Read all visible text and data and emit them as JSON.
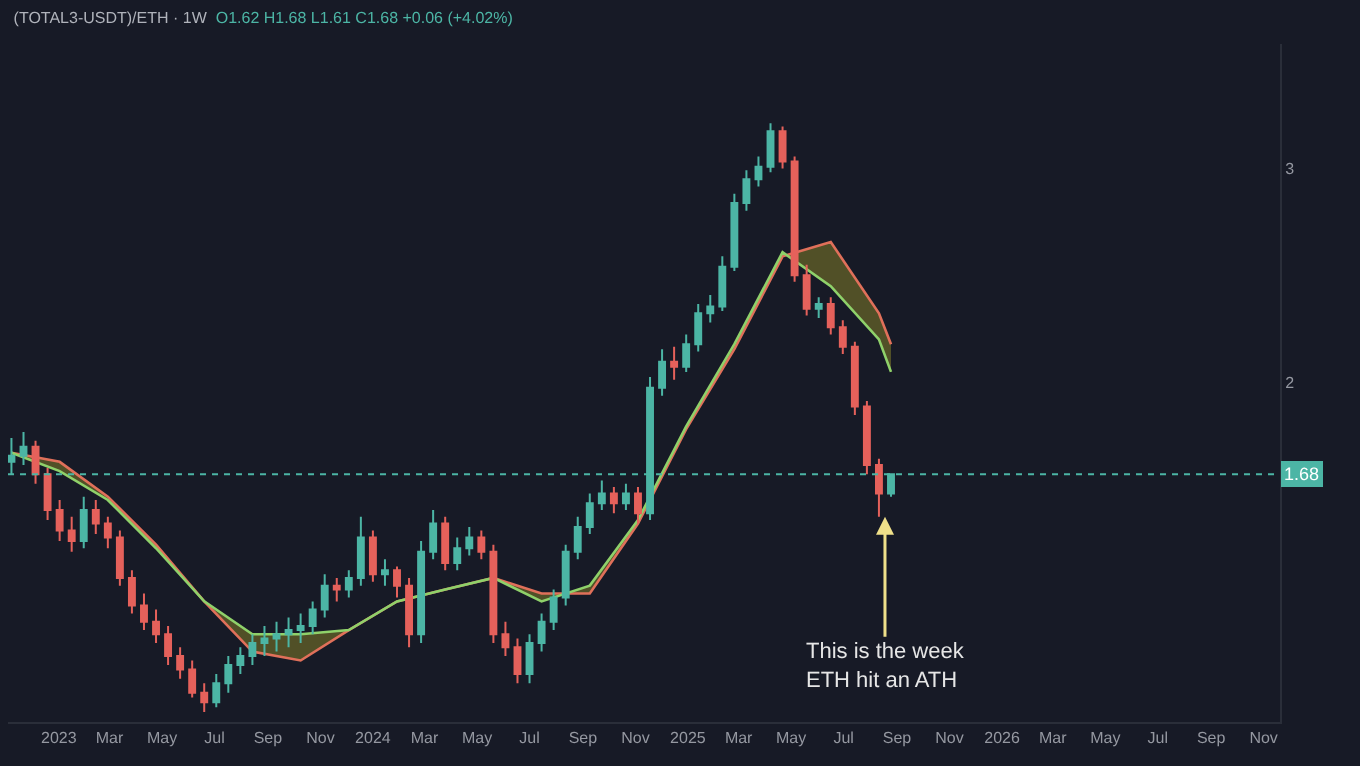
{
  "chart_data": {
    "type": "candlestick",
    "title": "(TOTAL3-USDT)/ETH · 1W",
    "subtitle": "O1.62 H1.68 L1.61 C1.68 +0.06 (+4.02%)",
    "x": [
      "2022-11-07",
      "2022-11-21",
      "2022-12-05",
      "2022-12-19",
      "2023-01-02",
      "2023-01-16",
      "2023-01-30",
      "2023-02-13",
      "2023-02-27",
      "2023-03-13",
      "2023-03-27",
      "2023-04-10",
      "2023-04-24",
      "2023-05-08",
      "2023-05-22",
      "2023-06-05",
      "2023-06-19",
      "2023-07-03",
      "2023-07-17",
      "2023-07-31",
      "2023-08-14",
      "2023-08-28",
      "2023-09-11",
      "2023-09-25",
      "2023-10-09",
      "2023-10-23",
      "2023-11-06",
      "2023-11-20",
      "2023-12-04",
      "2023-12-18",
      "2024-01-01",
      "2024-01-15",
      "2024-01-29",
      "2024-02-12",
      "2024-02-26",
      "2024-03-11",
      "2024-03-25",
      "2024-04-08",
      "2024-04-22",
      "2024-05-06",
      "2024-05-20",
      "2024-06-03",
      "2024-06-17",
      "2024-07-01",
      "2024-07-15",
      "2024-07-29",
      "2024-08-12",
      "2024-08-26",
      "2024-09-09",
      "2024-09-23",
      "2024-10-07",
      "2024-10-21",
      "2024-11-04",
      "2024-11-18",
      "2024-12-02",
      "2024-12-16",
      "2024-12-30",
      "2025-01-13",
      "2025-01-27",
      "2025-02-10",
      "2025-02-24",
      "2025-03-10",
      "2025-03-24",
      "2025-04-07",
      "2025-04-21",
      "2025-05-05",
      "2025-05-19",
      "2025-06-02",
      "2025-06-16",
      "2025-06-30",
      "2025-07-14",
      "2025-07-28",
      "2025-08-11",
      "2025-08-25"
    ],
    "ohlc": [
      [
        1.72,
        1.8,
        1.68,
        1.74
      ],
      [
        1.74,
        1.82,
        1.71,
        1.77
      ],
      [
        1.77,
        1.79,
        1.65,
        1.68
      ],
      [
        1.68,
        1.7,
        1.54,
        1.57
      ],
      [
        1.57,
        1.6,
        1.48,
        1.51
      ],
      [
        1.51,
        1.55,
        1.45,
        1.48
      ],
      [
        1.48,
        1.61,
        1.46,
        1.57
      ],
      [
        1.57,
        1.6,
        1.5,
        1.53
      ],
      [
        1.53,
        1.55,
        1.46,
        1.49
      ],
      [
        1.49,
        1.51,
        1.36,
        1.38
      ],
      [
        1.38,
        1.4,
        1.29,
        1.31
      ],
      [
        1.31,
        1.34,
        1.25,
        1.27
      ],
      [
        1.27,
        1.3,
        1.22,
        1.24
      ],
      [
        1.24,
        1.26,
        1.17,
        1.19
      ],
      [
        1.19,
        1.21,
        1.14,
        1.16
      ],
      [
        1.16,
        1.18,
        1.1,
        1.11
      ],
      [
        1.11,
        1.13,
        1.07,
        1.09
      ],
      [
        1.09,
        1.15,
        1.08,
        1.13
      ],
      [
        1.13,
        1.19,
        1.11,
        1.17
      ],
      [
        1.17,
        1.21,
        1.15,
        1.19
      ],
      [
        1.19,
        1.24,
        1.17,
        1.22
      ],
      [
        1.22,
        1.26,
        1.19,
        1.23
      ],
      [
        1.23,
        1.27,
        1.2,
        1.24
      ],
      [
        1.24,
        1.28,
        1.21,
        1.25
      ],
      [
        1.25,
        1.29,
        1.22,
        1.26
      ],
      [
        1.26,
        1.32,
        1.24,
        1.3
      ],
      [
        1.3,
        1.39,
        1.28,
        1.36
      ],
      [
        1.36,
        1.38,
        1.32,
        1.35
      ],
      [
        1.35,
        1.4,
        1.33,
        1.38
      ],
      [
        1.38,
        1.55,
        1.36,
        1.49
      ],
      [
        1.49,
        1.51,
        1.37,
        1.39
      ],
      [
        1.39,
        1.43,
        1.36,
        1.4
      ],
      [
        1.4,
        1.41,
        1.33,
        1.36
      ],
      [
        1.36,
        1.38,
        1.21,
        1.24
      ],
      [
        1.24,
        1.48,
        1.22,
        1.45
      ],
      [
        1.45,
        1.57,
        1.43,
        1.53
      ],
      [
        1.53,
        1.55,
        1.4,
        1.42
      ],
      [
        1.42,
        1.49,
        1.4,
        1.46
      ],
      [
        1.46,
        1.52,
        1.44,
        1.49
      ],
      [
        1.49,
        1.51,
        1.43,
        1.45
      ],
      [
        1.45,
        1.47,
        1.22,
        1.24
      ],
      [
        1.24,
        1.27,
        1.19,
        1.21
      ],
      [
        1.21,
        1.23,
        1.13,
        1.15
      ],
      [
        1.15,
        1.24,
        1.13,
        1.22
      ],
      [
        1.22,
        1.29,
        1.2,
        1.27
      ],
      [
        1.27,
        1.35,
        1.25,
        1.33
      ],
      [
        1.33,
        1.47,
        1.31,
        1.45
      ],
      [
        1.45,
        1.55,
        1.43,
        1.52
      ],
      [
        1.52,
        1.62,
        1.5,
        1.59
      ],
      [
        1.59,
        1.66,
        1.57,
        1.62
      ],
      [
        1.62,
        1.64,
        1.56,
        1.59
      ],
      [
        1.59,
        1.65,
        1.57,
        1.62
      ],
      [
        1.62,
        1.64,
        1.53,
        1.56
      ],
      [
        1.56,
        2.02,
        1.54,
        1.98
      ],
      [
        1.98,
        2.13,
        1.95,
        2.08
      ],
      [
        2.08,
        2.14,
        2.01,
        2.06
      ],
      [
        2.06,
        2.19,
        2.04,
        2.15
      ],
      [
        2.15,
        2.32,
        2.12,
        2.28
      ],
      [
        2.28,
        2.36,
        2.24,
        2.31
      ],
      [
        2.31,
        2.54,
        2.29,
        2.49
      ],
      [
        2.49,
        2.86,
        2.47,
        2.81
      ],
      [
        2.81,
        2.99,
        2.77,
        2.94
      ],
      [
        2.94,
        3.07,
        2.9,
        3.01
      ],
      [
        3.01,
        3.27,
        2.98,
        3.22
      ],
      [
        3.22,
        3.25,
        3.0,
        3.04
      ],
      [
        3.04,
        3.07,
        2.42,
        2.45
      ],
      [
        2.45,
        2.5,
        2.27,
        2.3
      ],
      [
        2.3,
        2.35,
        2.26,
        2.32
      ],
      [
        2.32,
        2.35,
        2.19,
        2.22
      ],
      [
        2.22,
        2.25,
        2.11,
        2.14
      ],
      [
        2.14,
        2.16,
        1.88,
        1.91
      ],
      [
        1.91,
        1.93,
        1.68,
        1.71
      ],
      [
        1.71,
        1.73,
        1.55,
        1.62
      ],
      [
        1.62,
        1.68,
        1.61,
        1.68
      ]
    ],
    "series": [
      {
        "type": "line",
        "color": "#e0705a",
        "x": [
          "2022-11-07",
          "2023-01-02",
          "2023-02-27",
          "2023-04-24",
          "2023-06-19",
          "2023-08-14",
          "2023-10-09",
          "2023-12-04",
          "2024-01-29",
          "2024-03-25",
          "2024-05-20",
          "2024-07-15",
          "2024-09-09",
          "2024-11-04",
          "2024-12-30",
          "2025-02-24",
          "2025-04-21",
          "2025-06-16",
          "2025-08-11",
          "2025-08-25"
        ],
        "values": [
          1.75,
          1.72,
          1.61,
          1.47,
          1.32,
          1.2,
          1.18,
          1.25,
          1.32,
          1.35,
          1.38,
          1.34,
          1.34,
          1.53,
          1.83,
          2.13,
          2.54,
          2.61,
          2.28,
          2.15
        ]
      },
      {
        "type": "line",
        "color": "#8fd16a",
        "x": [
          "2022-11-07",
          "2023-01-02",
          "2023-02-27",
          "2023-04-24",
          "2023-06-19",
          "2023-08-14",
          "2023-10-09",
          "2023-12-04",
          "2024-01-29",
          "2024-03-25",
          "2024-05-20",
          "2024-07-15",
          "2024-09-09",
          "2024-11-04",
          "2024-12-30",
          "2025-02-24",
          "2025-04-21",
          "2025-06-16",
          "2025-08-11",
          "2025-08-25"
        ],
        "values": [
          1.75,
          1.69,
          1.6,
          1.46,
          1.32,
          1.24,
          1.24,
          1.25,
          1.32,
          1.35,
          1.38,
          1.32,
          1.36,
          1.54,
          1.84,
          2.15,
          2.56,
          2.4,
          2.17,
          2.04
        ]
      }
    ],
    "log": true,
    "ylim": [
      1.05,
      3.8
    ],
    "yticks": [
      2,
      3
    ],
    "xlim": [
      "2022-11-03",
      "2026-11-20"
    ],
    "xticks": [
      {
        "value": "2023-01-01",
        "label": "2023"
      },
      {
        "value": "2023-03-01",
        "label": "Mar"
      },
      {
        "value": "2023-05-01",
        "label": "May"
      },
      {
        "value": "2023-07-01",
        "label": "Jul"
      },
      {
        "value": "2023-09-01",
        "label": "Sep"
      },
      {
        "value": "2023-11-01",
        "label": "Nov"
      },
      {
        "value": "2024-01-01",
        "label": "2024"
      },
      {
        "value": "2024-03-01",
        "label": "Mar"
      },
      {
        "value": "2024-05-01",
        "label": "May"
      },
      {
        "value": "2024-07-01",
        "label": "Jul"
      },
      {
        "value": "2024-09-01",
        "label": "Sep"
      },
      {
        "value": "2024-11-01",
        "label": "Nov"
      },
      {
        "value": "2025-01-01",
        "label": "2025"
      },
      {
        "value": "2025-03-01",
        "label": "Mar"
      },
      {
        "value": "2025-05-01",
        "label": "May"
      },
      {
        "value": "2025-07-01",
        "label": "Jul"
      },
      {
        "value": "2025-09-01",
        "label": "Sep"
      },
      {
        "value": "2025-11-01",
        "label": "Nov"
      },
      {
        "value": "2026-01-01",
        "label": "2026"
      },
      {
        "value": "2026-03-01",
        "label": "Mar"
      },
      {
        "value": "2026-05-01",
        "label": "May"
      },
      {
        "value": "2026-07-01",
        "label": "Jul"
      },
      {
        "value": "2026-09-01",
        "label": "Sep"
      },
      {
        "value": "2026-11-01",
        "label": "Nov"
      }
    ],
    "ref_lines": [
      {
        "axis": "y",
        "value": 1.68,
        "label": "1.68",
        "color": "#4cb5a5",
        "line_style": "dotted"
      }
    ],
    "annotations": [
      {
        "text": "This is the week\nETH hit an ATH",
        "x": "2025-08-18",
        "y": 1.55
      }
    ]
  }
}
